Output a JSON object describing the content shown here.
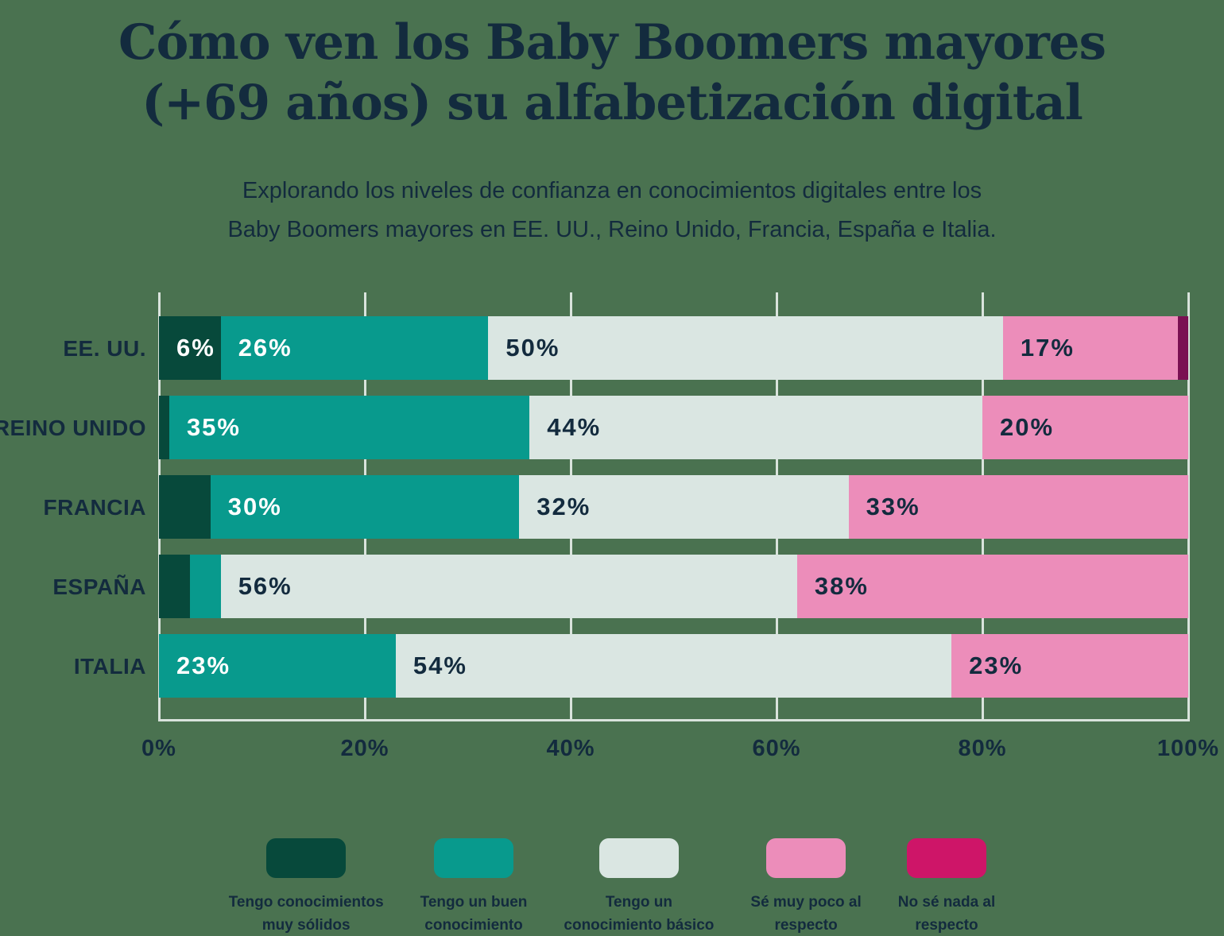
{
  "title": {
    "line1": "Cómo ven los Baby Boomers mayores",
    "line2": "(+69 años) su alfabetización digital"
  },
  "subtitle": {
    "line1": "Explorando los niveles de confianza en conocimientos digitales entre los",
    "line2": "Baby Boomers mayores en EE. UU., Reino Unido, Francia, España e Italia."
  },
  "colors": {
    "background": "#4A7250",
    "text": "#132B3E",
    "grid": "#D9E3DC",
    "label_on_dark": "#FFFFFF"
  },
  "chart_data": {
    "type": "bar",
    "orientation": "horizontal",
    "stacked": true,
    "unit": "%",
    "title": "Cómo ven los Baby Boomers mayores (+69 años) su alfabetización digital",
    "categories": [
      "EE. UU.",
      "REINO UNIDO",
      "FRANCIA",
      "ESPAÑA",
      "ITALIA"
    ],
    "series": [
      {
        "name": "Tengo conocimientos muy sólidos",
        "legend_lines": [
          "Tengo conocimientos",
          "muy sólidos"
        ],
        "color": "#07493B",
        "legend_color": "#07493B",
        "label_color": "#FFFFFF",
        "values": [
          6,
          1,
          5,
          3,
          0
        ]
      },
      {
        "name": "Tengo un buen conocimiento",
        "legend_lines": [
          "Tengo un buen",
          "conocimiento"
        ],
        "color": "#089A8D",
        "legend_color": "#089A8D",
        "label_color": "#FFFFFF",
        "values": [
          26,
          35,
          30,
          3,
          23
        ]
      },
      {
        "name": "Tengo un conocimiento básico",
        "legend_lines": [
          "Tengo un",
          "conocimiento básico"
        ],
        "color": "#DAE6E2",
        "legend_color": "#DAE6E2",
        "label_color": "#132B3E",
        "values": [
          50,
          44,
          32,
          56,
          54
        ]
      },
      {
        "name": "Sé muy poco al respecto",
        "legend_lines": [
          "Sé muy poco al",
          "respecto"
        ],
        "color": "#EC8DBA",
        "legend_color": "#EC8DBA",
        "label_color": "#132B3E",
        "values": [
          17,
          20,
          33,
          38,
          23
        ]
      },
      {
        "name": "No sé nada al respecto",
        "legend_lines": [
          "No sé nada al",
          "respecto"
        ],
        "color": "#7A1052",
        "legend_color": "#CE1568",
        "label_color": "#FFFFFF",
        "values": [
          1,
          0,
          0,
          0,
          0
        ]
      }
    ],
    "x_ticks": [
      "0%",
      "20%",
      "40%",
      "60%",
      "80%",
      "100%"
    ],
    "xlim": [
      0,
      100
    ],
    "label_min_value": 6,
    "grid": true,
    "legend_position": "bottom"
  }
}
